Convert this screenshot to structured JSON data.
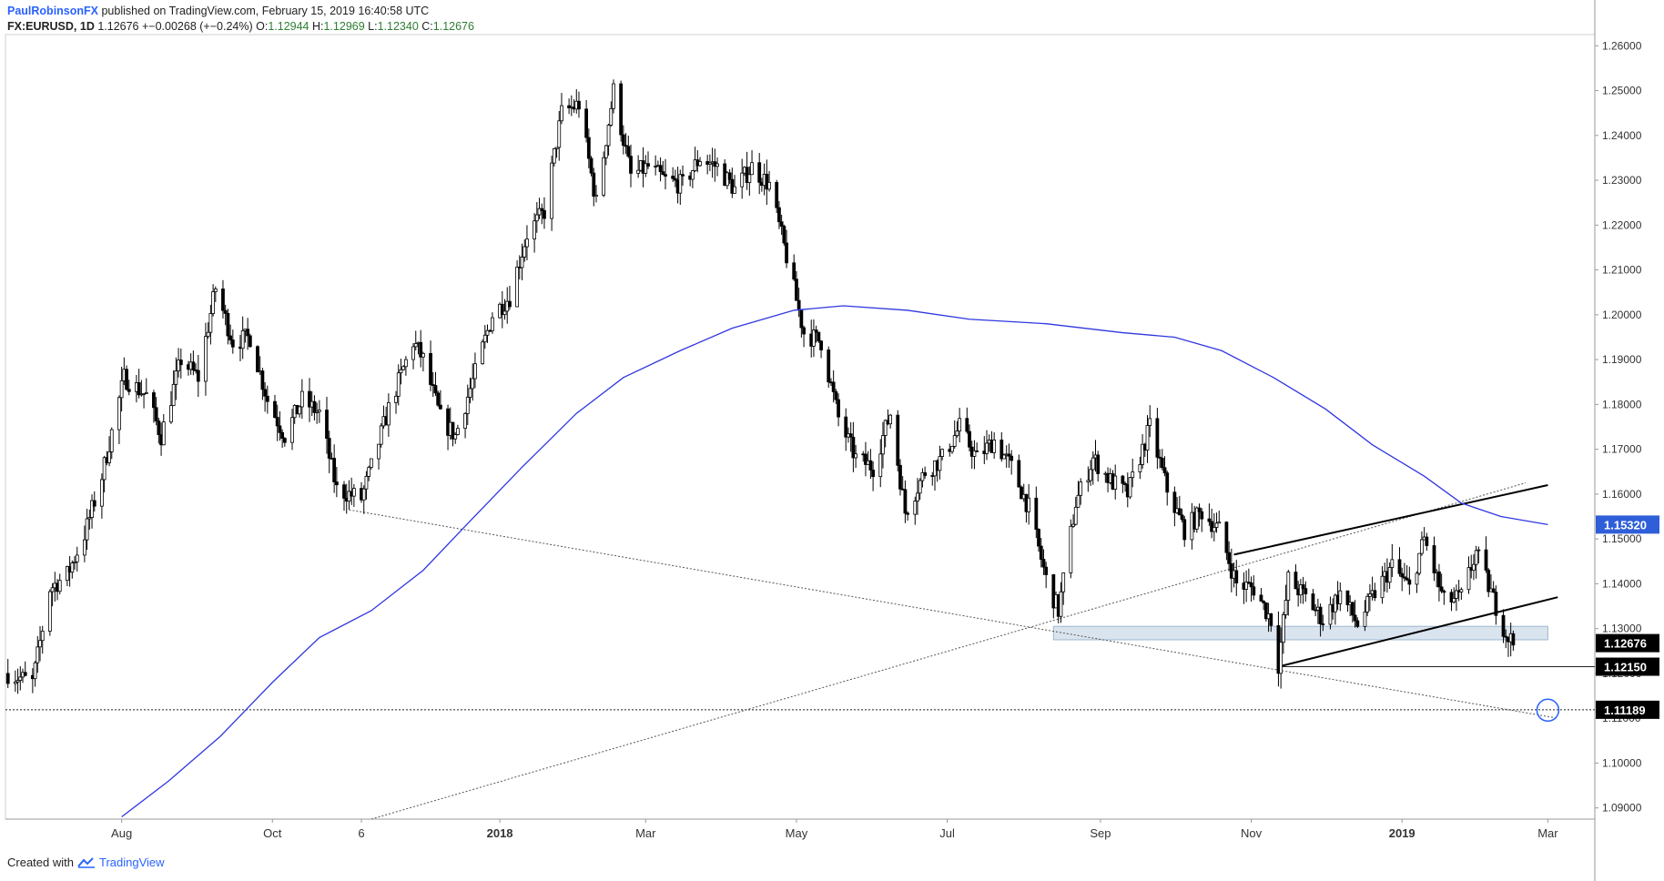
{
  "header": {
    "author": "PaulRobinsonFX",
    "published": "published on TradingView.com, February 15, 2019 16:40:58 UTC",
    "symbol": "FX:EURUSD, 1D",
    "last": "1.12676",
    "change": "+−0.00268 (+−0.24%)",
    "open_label": "O:",
    "open": "1.12944",
    "high_label": "H:",
    "high": "1.12969",
    "low_label": "L:",
    "low": "1.12340",
    "close_label": "C:",
    "close": "1.12676"
  },
  "footer": {
    "created_with": "Created with",
    "brand": "TradingView",
    "logo_icon": "tradingview-logo-icon"
  },
  "colors": {
    "up_candle": "#ffffff",
    "down_candle": "#000000",
    "ma_line": "#2f37e0",
    "zone_fill": "#c9d9e8",
    "price_label_bg": "#000000",
    "ma_label_bg": "#2f5fd8",
    "circle": "#2962ff"
  },
  "chart_data": {
    "type": "candlestick",
    "y_axis": {
      "range": [
        1.0875,
        1.2625
      ],
      "ticks": [
        "1.09000",
        "1.10000",
        "1.11000",
        "1.12000",
        "1.13000",
        "1.14000",
        "1.15000",
        "1.16000",
        "1.17000",
        "1.18000",
        "1.19000",
        "1.20000",
        "1.21000",
        "1.22000",
        "1.23000",
        "1.24000",
        "1.25000",
        "1.26000"
      ],
      "markers": [
        {
          "value": 1.1532,
          "label": "1.15320",
          "kind": "ma"
        },
        {
          "value": 1.12676,
          "label": "1.12676",
          "kind": "price"
        },
        {
          "value": 1.1215,
          "label": "1.12150",
          "kind": "price"
        },
        {
          "value": 1.11189,
          "label": "1.11189",
          "kind": "price"
        }
      ]
    },
    "x_axis": {
      "range": [
        "2017-06-15",
        "2019-03-20"
      ],
      "ticks": [
        {
          "date": "2017-08-01",
          "label": "Aug",
          "bold": false
        },
        {
          "date": "2017-10-01",
          "label": "Oct",
          "bold": false
        },
        {
          "date": "2017-11-06",
          "label": "6",
          "bold": false
        },
        {
          "date": "2018-01-01",
          "label": "2018",
          "bold": true
        },
        {
          "date": "2018-03-01",
          "label": "Mar",
          "bold": false
        },
        {
          "date": "2018-05-01",
          "label": "May",
          "bold": false
        },
        {
          "date": "2018-07-01",
          "label": "Jul",
          "bold": false
        },
        {
          "date": "2018-09-01",
          "label": "Sep",
          "bold": false
        },
        {
          "date": "2018-11-01",
          "label": "Nov",
          "bold": false
        },
        {
          "date": "2019-01-01",
          "label": "2019",
          "bold": true
        },
        {
          "date": "2019-03-01",
          "label": "Mar",
          "bold": false
        }
      ]
    },
    "price_path": [
      [
        "2017-06-16",
        1.12
      ],
      [
        "2017-06-26",
        1.118
      ],
      [
        "2017-07-03",
        1.139
      ],
      [
        "2017-07-10",
        1.142
      ],
      [
        "2017-07-17",
        1.151
      ],
      [
        "2017-07-24",
        1.164
      ],
      [
        "2017-08-02",
        1.186
      ],
      [
        "2017-08-11",
        1.182
      ],
      [
        "2017-08-17",
        1.173
      ],
      [
        "2017-08-25",
        1.19
      ],
      [
        "2017-09-01",
        1.186
      ],
      [
        "2017-09-08",
        1.206
      ],
      [
        "2017-09-15",
        1.194
      ],
      [
        "2017-09-22",
        1.195
      ],
      [
        "2017-09-29",
        1.181
      ],
      [
        "2017-10-06",
        1.173
      ],
      [
        "2017-10-13",
        1.181
      ],
      [
        "2017-10-20",
        1.178
      ],
      [
        "2017-10-27",
        1.161
      ],
      [
        "2017-11-06",
        1.159
      ],
      [
        "2017-11-10",
        1.166
      ],
      [
        "2017-11-17",
        1.179
      ],
      [
        "2017-11-27",
        1.194
      ],
      [
        "2017-12-01",
        1.19
      ],
      [
        "2017-12-08",
        1.177
      ],
      [
        "2017-12-14",
        1.173
      ],
      [
        "2017-12-22",
        1.187
      ],
      [
        "2017-12-29",
        1.2
      ],
      [
        "2018-01-05",
        1.204
      ],
      [
        "2018-01-12",
        1.218
      ],
      [
        "2018-01-19",
        1.223
      ],
      [
        "2018-01-26",
        1.245
      ],
      [
        "2018-02-02",
        1.247
      ],
      [
        "2018-02-09",
        1.225
      ],
      [
        "2018-02-16",
        1.25
      ],
      [
        "2018-02-23",
        1.231
      ],
      [
        "2018-03-02",
        1.233
      ],
      [
        "2018-03-09",
        1.23
      ],
      [
        "2018-03-16",
        1.229
      ],
      [
        "2018-03-23",
        1.235
      ],
      [
        "2018-03-30",
        1.233
      ],
      [
        "2018-04-06",
        1.228
      ],
      [
        "2018-04-13",
        1.233
      ],
      [
        "2018-04-20",
        1.229
      ],
      [
        "2018-04-27",
        1.213
      ],
      [
        "2018-05-04",
        1.196
      ],
      [
        "2018-05-11",
        1.194
      ],
      [
        "2018-05-18",
        1.177
      ],
      [
        "2018-05-25",
        1.168
      ],
      [
        "2018-06-01",
        1.166
      ],
      [
        "2018-06-08",
        1.178
      ],
      [
        "2018-06-14",
        1.156
      ],
      [
        "2018-06-22",
        1.165
      ],
      [
        "2018-06-29",
        1.168
      ],
      [
        "2018-07-06",
        1.175
      ],
      [
        "2018-07-13",
        1.168
      ],
      [
        "2018-07-20",
        1.172
      ],
      [
        "2018-07-27",
        1.166
      ],
      [
        "2018-08-03",
        1.157
      ],
      [
        "2018-08-10",
        1.141
      ],
      [
        "2018-08-15",
        1.134
      ],
      [
        "2018-08-22",
        1.158
      ],
      [
        "2018-08-29",
        1.168
      ],
      [
        "2018-09-05",
        1.163
      ],
      [
        "2018-09-12",
        1.16
      ],
      [
        "2018-09-21",
        1.175
      ],
      [
        "2018-09-28",
        1.161
      ],
      [
        "2018-10-05",
        1.152
      ],
      [
        "2018-10-12",
        1.156
      ],
      [
        "2018-10-19",
        1.152
      ],
      [
        "2018-10-26",
        1.14
      ],
      [
        "2018-11-02",
        1.139
      ],
      [
        "2018-11-09",
        1.132
      ],
      [
        "2018-11-12",
        1.122
      ],
      [
        "2018-11-16",
        1.141
      ],
      [
        "2018-11-23",
        1.137
      ],
      [
        "2018-11-30",
        1.132
      ],
      [
        "2018-12-07",
        1.138
      ],
      [
        "2018-12-14",
        1.131
      ],
      [
        "2018-12-21",
        1.138
      ],
      [
        "2018-12-28",
        1.144
      ],
      [
        "2019-01-04",
        1.139
      ],
      [
        "2019-01-10",
        1.15
      ],
      [
        "2019-01-18",
        1.136
      ],
      [
        "2019-01-25",
        1.137
      ],
      [
        "2019-01-31",
        1.147
      ],
      [
        "2019-02-06",
        1.138
      ],
      [
        "2019-02-12",
        1.129
      ],
      [
        "2019-02-15",
        1.1268
      ]
    ],
    "moving_average": [
      [
        "2017-08-01",
        1.088
      ],
      [
        "2017-08-20",
        1.096
      ],
      [
        "2017-09-10",
        1.106
      ],
      [
        "2017-10-01",
        1.118
      ],
      [
        "2017-10-20",
        1.128
      ],
      [
        "2017-11-10",
        1.134
      ],
      [
        "2017-12-01",
        1.143
      ],
      [
        "2017-12-20",
        1.154
      ],
      [
        "2018-01-10",
        1.166
      ],
      [
        "2018-02-01",
        1.178
      ],
      [
        "2018-02-20",
        1.186
      ],
      [
        "2018-03-15",
        1.192
      ],
      [
        "2018-04-05",
        1.197
      ],
      [
        "2018-04-30",
        1.201
      ],
      [
        "2018-05-20",
        1.202
      ],
      [
        "2018-06-15",
        1.201
      ],
      [
        "2018-07-10",
        1.199
      ],
      [
        "2018-08-10",
        1.198
      ],
      [
        "2018-09-10",
        1.196
      ],
      [
        "2018-10-01",
        1.195
      ],
      [
        "2018-10-20",
        1.192
      ],
      [
        "2018-11-10",
        1.186
      ],
      [
        "2018-12-01",
        1.179
      ],
      [
        "2018-12-20",
        1.171
      ],
      [
        "2019-01-10",
        1.164
      ],
      [
        "2019-01-25",
        1.158
      ],
      [
        "2019-02-10",
        1.155
      ],
      [
        "2019-03-01",
        1.1532
      ]
    ],
    "support_zone": {
      "from": "2018-08-13",
      "to": "2019-03-01",
      "low": 1.1275,
      "high": 1.1305
    },
    "trend_lines": [
      {
        "from": [
          "2017-11-01",
          1.1565
        ],
        "to": [
          "2019-03-05",
          1.11
        ],
        "style": "dotted"
      },
      {
        "from": [
          "2017-11-10",
          1.0875
        ],
        "to": [
          "2019-02-20",
          1.1625
        ],
        "style": "dotted"
      },
      {
        "from": [
          "2018-10-25",
          1.1465
        ],
        "to": [
          "2019-03-01",
          1.162
        ],
        "style": "solid"
      },
      {
        "from": [
          "2018-11-12",
          1.1215
        ],
        "to": [
          "2019-03-05",
          1.137
        ],
        "style": "solid"
      }
    ],
    "horizontal_lines": [
      {
        "from": "2018-11-12",
        "value": 1.1215,
        "style": "solid"
      },
      {
        "from": "2017-06-15",
        "value": 1.11189,
        "style": "dotted"
      }
    ],
    "target_circle": {
      "date": "2019-03-01",
      "value": 1.1118
    }
  }
}
